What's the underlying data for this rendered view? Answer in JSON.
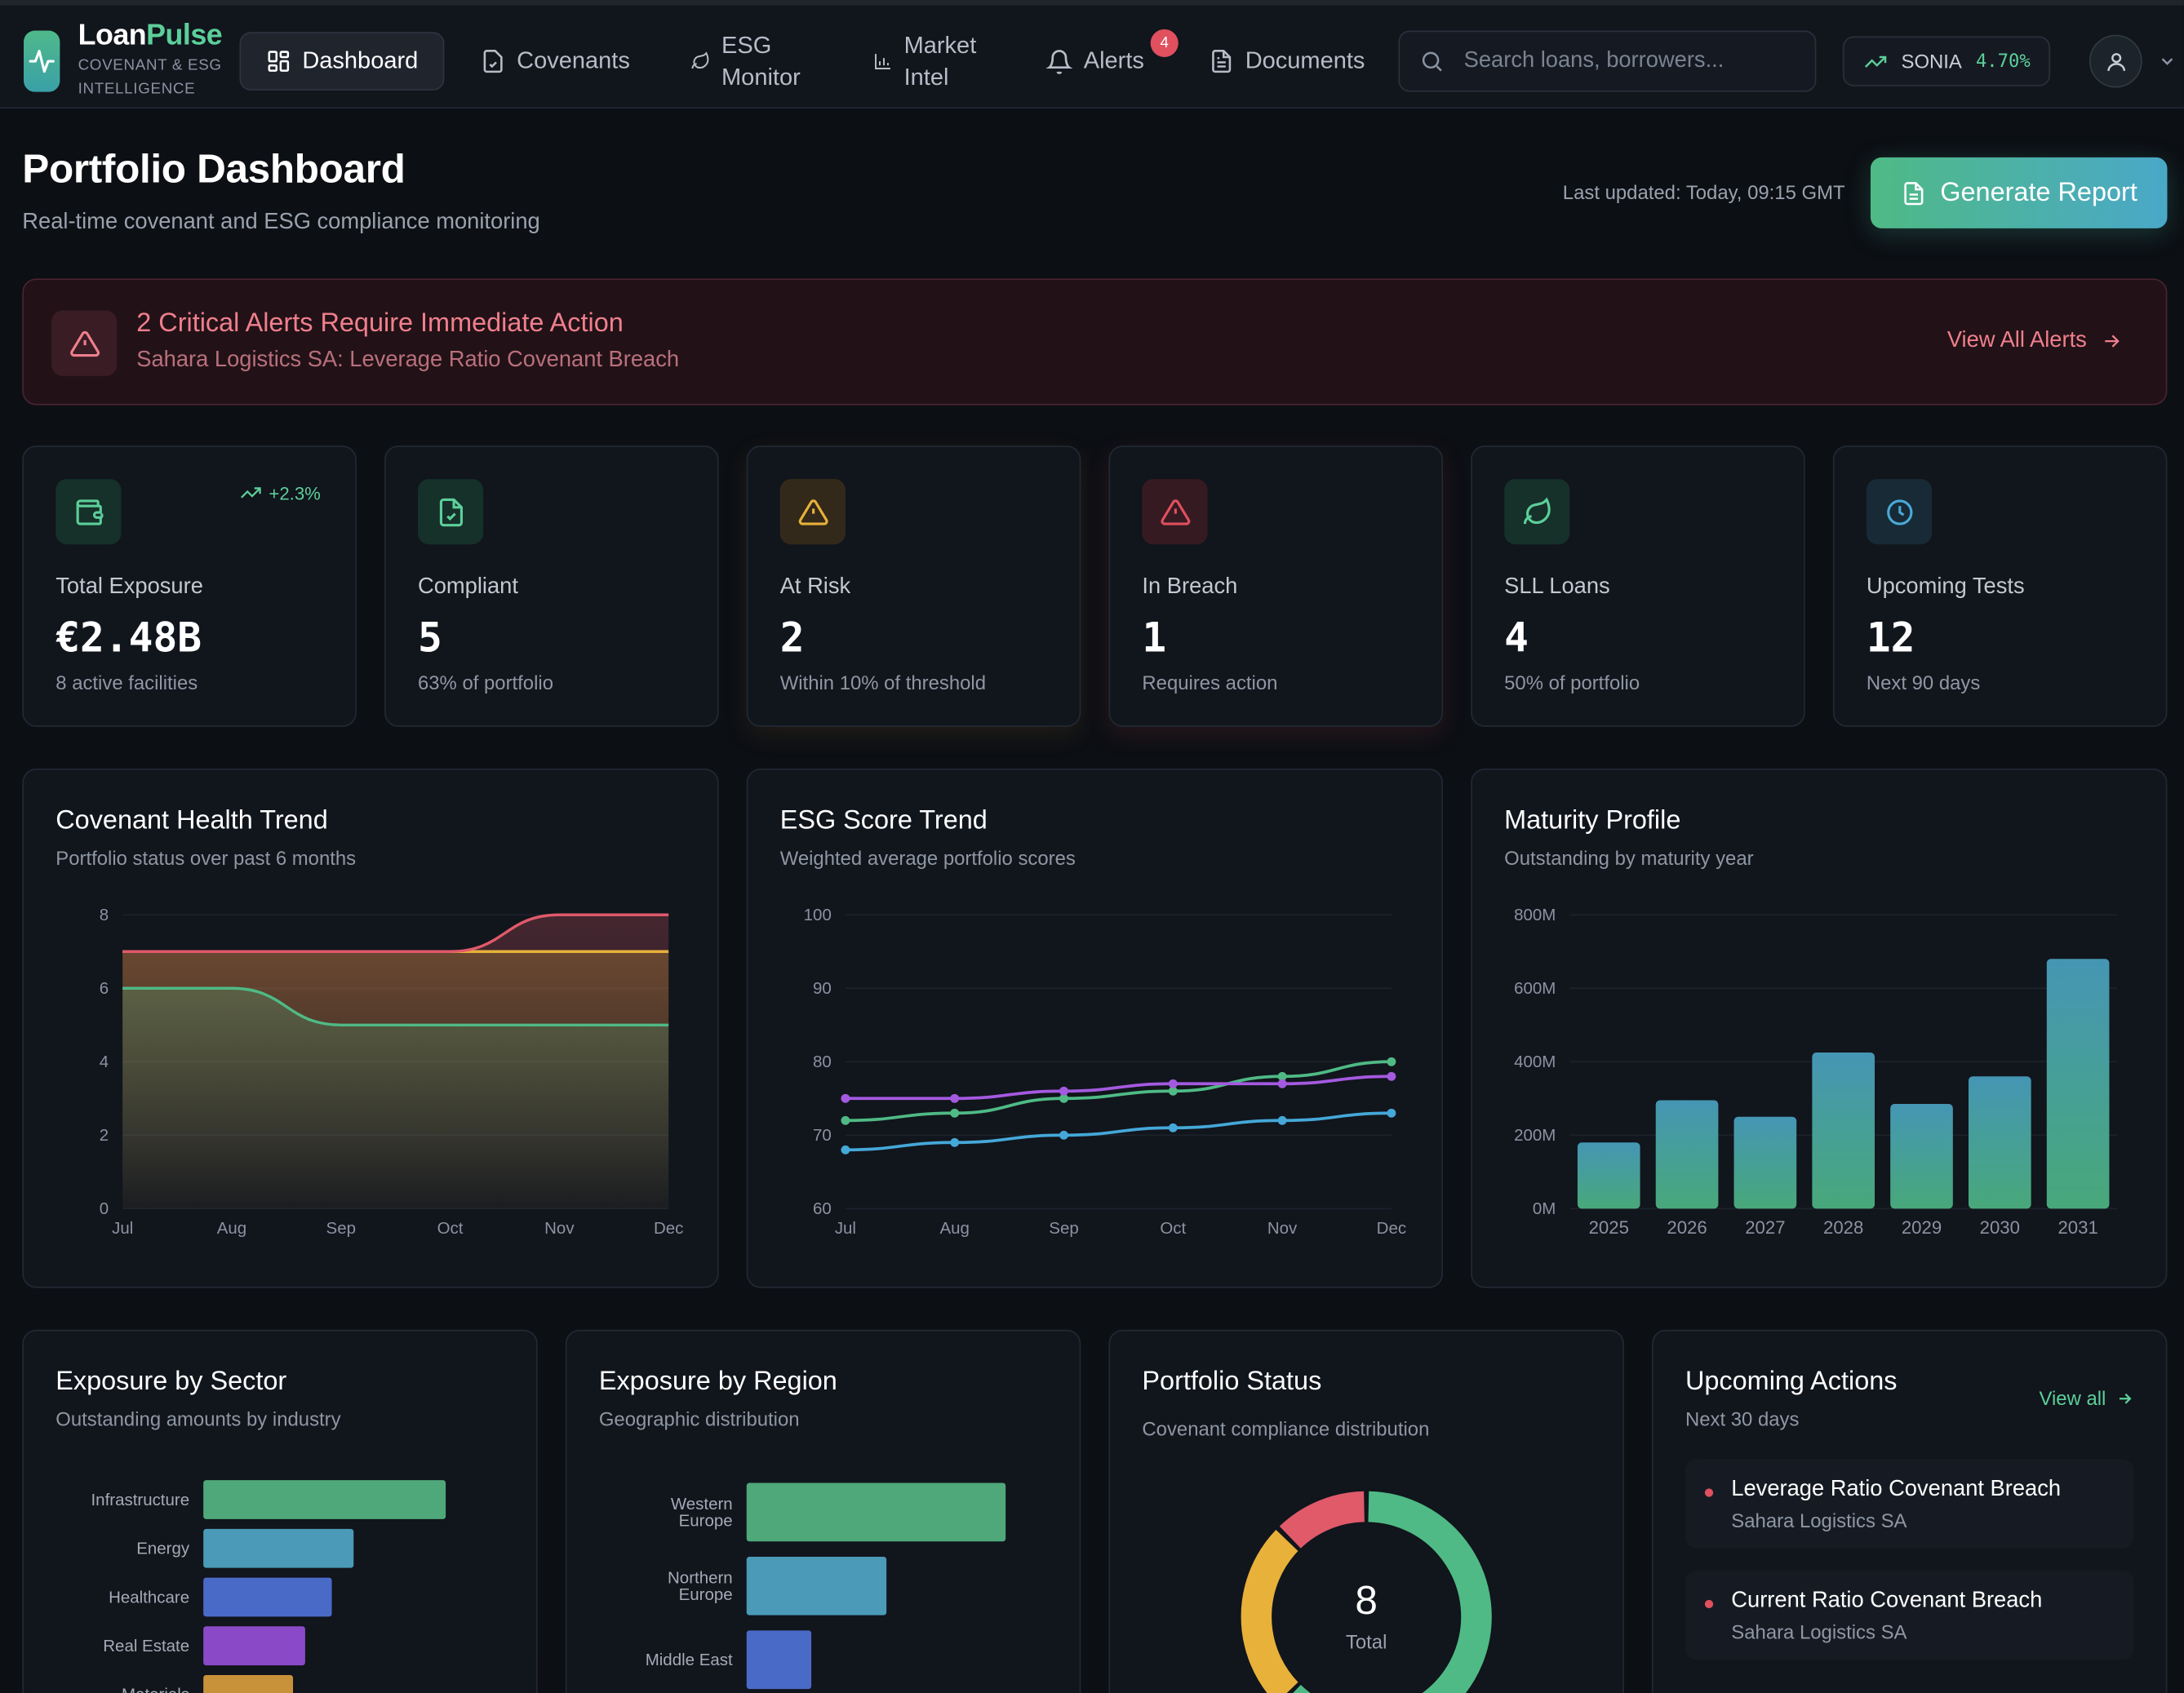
{
  "brand": {
    "name_main": "Loan",
    "name_accent": "Pulse",
    "sub_line1": "COVENANT & ESG",
    "sub_line2": "INTELLIGENCE"
  },
  "nav": {
    "dashboard": "Dashboard",
    "covenants": "Covenants",
    "esg_line1": "ESG",
    "esg_line2": "Monitor",
    "market_line1": "Market",
    "market_line2": "Intel",
    "alerts": "Alerts",
    "alerts_count": "4",
    "documents": "Documents"
  },
  "search": {
    "placeholder": "Search loans, borrowers..."
  },
  "rate": {
    "label": "SONIA",
    "value": "4.70%"
  },
  "header": {
    "title": "Portfolio Dashboard",
    "subtitle": "Real-time covenant and ESG compliance monitoring",
    "updated": "Last updated: Today, 09:15 GMT",
    "report_button": "Generate Report"
  },
  "alert": {
    "title": "2 Critical Alerts Require Immediate Action",
    "subtitle": "Sahara Logistics SA: Leverage Ratio Covenant Breach",
    "link": "View All Alerts"
  },
  "stats": [
    {
      "label": "Total Exposure",
      "value": "€2.48B",
      "sub": "8 active facilities",
      "trend": "+2.3%",
      "color": "#5ccf9a"
    },
    {
      "label": "Compliant",
      "value": "5",
      "sub": "63% of portfolio",
      "color": "#5ccf9a"
    },
    {
      "label": "At Risk",
      "value": "2",
      "sub": "Within 10% of threshold",
      "color": "#e8b13a"
    },
    {
      "label": "In Breach",
      "value": "1",
      "sub": "Requires action",
      "color": "#e0505e"
    },
    {
      "label": "SLL Loans",
      "value": "4",
      "sub": "50% of portfolio",
      "color": "#5ccf9a"
    },
    {
      "label": "Upcoming Tests",
      "value": "12",
      "sub": "Next 90 days",
      "color": "#4aa8d8"
    }
  ],
  "covenant_chart": {
    "title": "Covenant Health Trend",
    "subtitle": "Portfolio status over past 6 months",
    "chart_data": {
      "type": "area",
      "categories": [
        "Jul",
        "Aug",
        "Sep",
        "Oct",
        "Nov",
        "Dec"
      ],
      "y_ticks": [
        0,
        2,
        4,
        6,
        8
      ],
      "ylim": [
        0,
        8
      ],
      "series": [
        {
          "values": [
            6,
            6,
            5,
            5,
            5,
            5
          ],
          "color": "#4fba85"
        },
        {
          "values": [
            7,
            7,
            7,
            7,
            7,
            7
          ],
          "color": "#e8b13a"
        },
        {
          "values": [
            7,
            7,
            7,
            7,
            8,
            8
          ],
          "color": "#e05a6a"
        }
      ]
    }
  },
  "esg_chart": {
    "title": "ESG Score Trend",
    "subtitle": "Weighted average portfolio scores",
    "chart_data": {
      "type": "line",
      "categories": [
        "Jul",
        "Aug",
        "Sep",
        "Oct",
        "Nov",
        "Dec"
      ],
      "y_ticks": [
        60,
        70,
        80,
        90,
        100
      ],
      "ylim": [
        60,
        100
      ],
      "series": [
        {
          "values": [
            72,
            73,
            75,
            76,
            78,
            80
          ],
          "color": "#4fba85"
        },
        {
          "values": [
            75,
            75,
            76,
            77,
            77,
            78
          ],
          "color": "#a45ae0"
        },
        {
          "values": [
            68,
            69,
            70,
            71,
            72,
            73
          ],
          "color": "#45a8d8"
        }
      ]
    }
  },
  "maturity_chart": {
    "title": "Maturity Profile",
    "subtitle": "Outstanding by maturity year",
    "chart_data": {
      "type": "bar",
      "categories": [
        "2025",
        "2026",
        "2027",
        "2028",
        "2029",
        "2030",
        "2031"
      ],
      "values": [
        180,
        295,
        250,
        425,
        285,
        360,
        680
      ],
      "y_ticks": [
        "0M",
        "200M",
        "400M",
        "600M",
        "800M"
      ],
      "ylim": [
        0,
        800
      ]
    }
  },
  "sector_chart": {
    "title": "Exposure by Sector",
    "subtitle": "Outstanding amounts by industry",
    "chart_data": {
      "type": "bar",
      "categories": [
        "Infrastructure",
        "Energy",
        "Healthcare",
        "Real Estate",
        "Materials"
      ],
      "values": [
        100,
        62,
        53,
        42,
        37
      ],
      "colors": [
        "#4fa87a",
        "#4a9ab8",
        "#4a6ac8",
        "#8a4ac8",
        "#c8923a"
      ]
    }
  },
  "region_chart": {
    "title": "Exposure by Region",
    "subtitle": "Geographic distribution",
    "chart_data": {
      "type": "bar",
      "categories": [
        [
          "Western",
          "Europe"
        ],
        [
          "Northern",
          "Europe"
        ],
        [
          "Middle East"
        ]
      ],
      "values": [
        100,
        54,
        25
      ],
      "colors": [
        "#4fa87a",
        "#4a9ab8",
        "#4a6ac8"
      ]
    }
  },
  "status_chart": {
    "title": "Portfolio Status",
    "subtitle": "Covenant compliance distribution",
    "total": "8",
    "total_label": "Total",
    "chart_data": {
      "type": "pie",
      "values": [
        5,
        2,
        1
      ],
      "colors": [
        "#4fba85",
        "#e8b13a",
        "#e05a6a"
      ]
    }
  },
  "actions": {
    "title": "Upcoming Actions",
    "subtitle": "Next 30 days",
    "view_all": "View all",
    "items": [
      {
        "title": "Leverage Ratio Covenant Breach",
        "borrower": "Sahara Logistics SA"
      },
      {
        "title": "Current Ratio Covenant Breach",
        "borrower": "Sahara Logistics SA"
      }
    ]
  }
}
